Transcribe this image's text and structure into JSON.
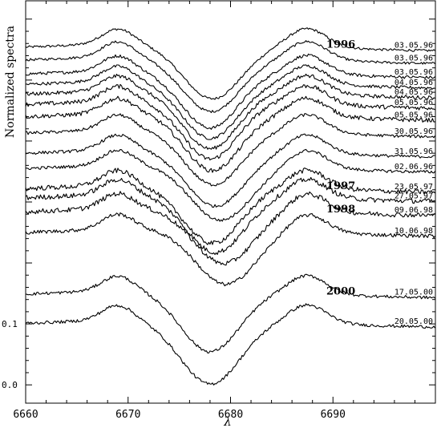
{
  "chart_data": {
    "type": "line",
    "title": "",
    "xlabel": "λ",
    "ylabel": "Normalized spectra",
    "xlim": [
      6660,
      6700
    ],
    "ylim": [
      -0.03,
      0.63
    ],
    "x_ticks": [
      6660,
      6670,
      6680,
      6690
    ],
    "x_tick_labels": [
      "6660",
      "6670",
      "6680",
      "6690"
    ],
    "y_ticks": [
      0.0,
      0.1
    ],
    "y_tick_labels": [
      "0.0",
      "0.1"
    ],
    "grid": false,
    "legend": "none",
    "line_color": "#000000",
    "year_labels": [
      {
        "text": "1996",
        "series_index": 0
      },
      {
        "text": "1997",
        "series_index": 10
      },
      {
        "text": "1998",
        "series_index": 12
      },
      {
        "text": "2000",
        "series_index": 14
      }
    ],
    "series": [
      {
        "label": "03.05.96",
        "offset": 0.554,
        "depth": 0.09,
        "width": 3.8,
        "center": 6678.2,
        "noise": 0.002
      },
      {
        "label": "03.05.96",
        "offset": 0.533,
        "depth": 0.09,
        "width": 3.8,
        "center": 6678.1,
        "noise": 0.002
      },
      {
        "label": "03.05.96",
        "offset": 0.51,
        "depth": 0.094,
        "width": 3.7,
        "center": 6678.0,
        "noise": 0.0025
      },
      {
        "label": "04.05.96",
        "offset": 0.493,
        "depth": 0.094,
        "width": 3.7,
        "center": 6678.0,
        "noise": 0.0025
      },
      {
        "label": "04.05.96",
        "offset": 0.477,
        "depth": 0.095,
        "width": 3.6,
        "center": 6678.0,
        "noise": 0.003
      },
      {
        "label": "05.05.96",
        "offset": 0.46,
        "depth": 0.095,
        "width": 3.6,
        "center": 6678.0,
        "noise": 0.0035
      },
      {
        "label": "05.05.96",
        "offset": 0.44,
        "depth": 0.094,
        "width": 3.6,
        "center": 6678.2,
        "noise": 0.0035
      },
      {
        "label": "30.05.96",
        "offset": 0.413,
        "depth": 0.09,
        "width": 3.7,
        "center": 6678.3,
        "noise": 0.0025
      },
      {
        "label": "31.05.96",
        "offset": 0.38,
        "depth": 0.092,
        "width": 3.8,
        "center": 6678.5,
        "noise": 0.0025
      },
      {
        "label": "02.06.96",
        "offset": 0.355,
        "depth": 0.09,
        "width": 3.9,
        "center": 6679.0,
        "noise": 0.0025
      },
      {
        "label": "23.05.97",
        "offset": 0.322,
        "depth": 0.095,
        "width": 3.8,
        "center": 6678.2,
        "noise": 0.004
      },
      {
        "label": "27.05.97",
        "offset": 0.307,
        "depth": 0.095,
        "width": 3.8,
        "center": 6678.5,
        "noise": 0.004
      },
      {
        "label": "09.06.98",
        "offset": 0.284,
        "depth": 0.09,
        "width": 3.9,
        "center": 6679.3,
        "noise": 0.004
      },
      {
        "label": "10.06.98",
        "offset": 0.25,
        "depth": 0.09,
        "width": 3.9,
        "center": 6679.5,
        "noise": 0.003
      },
      {
        "label": "17.05.00",
        "offset": 0.149,
        "depth": 0.1,
        "width": 3.8,
        "center": 6678.0,
        "noise": 0.0025
      },
      {
        "label": "20.05.00",
        "offset": 0.101,
        "depth": 0.105,
        "width": 3.9,
        "center": 6678.0,
        "noise": 0.0025
      }
    ]
  }
}
